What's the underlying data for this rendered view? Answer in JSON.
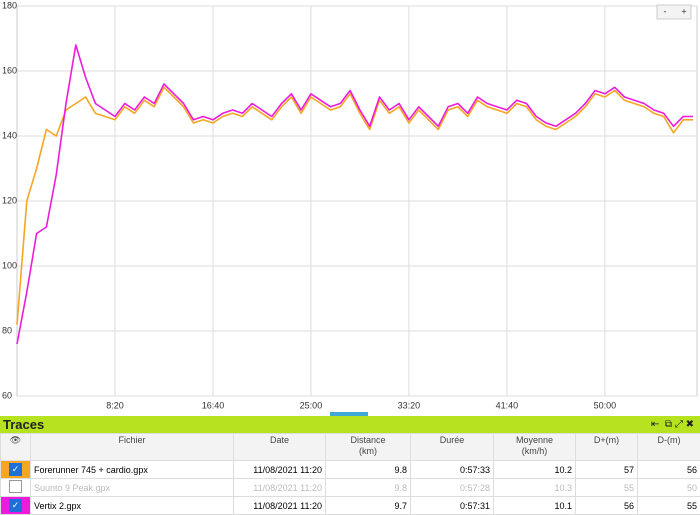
{
  "chart_data": {
    "type": "line",
    "zoom_out": "-",
    "zoom_in": "+",
    "x": [
      0,
      50,
      100,
      150,
      200,
      250,
      300,
      350,
      400,
      450,
      500,
      550,
      600,
      650,
      700,
      750,
      800,
      850,
      900,
      950,
      1000,
      1050,
      1100,
      1150,
      1200,
      1250,
      1300,
      1350,
      1400,
      1450,
      1500,
      1550,
      1600,
      1650,
      1700,
      1750,
      1800,
      1850,
      1900,
      1950,
      2000,
      2050,
      2100,
      2150,
      2200,
      2250,
      2300,
      2350,
      2400,
      2450,
      2500,
      2550,
      2600,
      2650,
      2700,
      2750,
      2800,
      2850,
      2900,
      2950,
      3000,
      3050,
      3100,
      3150,
      3200,
      3250,
      3300,
      3350,
      3400,
      3450
    ],
    "series": [
      {
        "name": "Forerunner 745 + cardio.gpx",
        "color": "#f5a623",
        "values": [
          82,
          120,
          130,
          142,
          140,
          148,
          150,
          152,
          147,
          146,
          145,
          149,
          147,
          151,
          149,
          155,
          152,
          149,
          144,
          145,
          144,
          146,
          147,
          146,
          149,
          147,
          145,
          149,
          152,
          147,
          152,
          150,
          148,
          149,
          153,
          147,
          142,
          151,
          147,
          149,
          144,
          148,
          145,
          142,
          148,
          149,
          146,
          151,
          149,
          148,
          147,
          150,
          149,
          145,
          143,
          142,
          144,
          146,
          149,
          153,
          152,
          154,
          151,
          150,
          149,
          147,
          146,
          141,
          145,
          145
        ]
      },
      {
        "name": "Vertix 2.gpx",
        "color": "#ee1bdc",
        "values": [
          76,
          92,
          110,
          112,
          128,
          150,
          168,
          158,
          150,
          148,
          146,
          150,
          148,
          152,
          150,
          156,
          153,
          150,
          145,
          146,
          145,
          147,
          148,
          147,
          150,
          148,
          146,
          150,
          153,
          148,
          153,
          151,
          149,
          150,
          154,
          148,
          143,
          152,
          148,
          150,
          145,
          149,
          146,
          143,
          149,
          150,
          147,
          152,
          150,
          149,
          148,
          151,
          150,
          146,
          144,
          143,
          145,
          147,
          150,
          154,
          153,
          155,
          152,
          151,
          150,
          148,
          147,
          143,
          146,
          146
        ]
      }
    ],
    "xlim": [
      0,
      3470
    ],
    "ylim": [
      60,
      180
    ],
    "xticks": [
      {
        "value": 500,
        "label": "8:20"
      },
      {
        "value": 1000,
        "label": "16:40"
      },
      {
        "value": 1500,
        "label": "25:00"
      },
      {
        "value": 2000,
        "label": "33:20"
      },
      {
        "value": 2500,
        "label": "41:40"
      },
      {
        "value": 3000,
        "label": "50:00"
      }
    ],
    "yticks": [
      60,
      80,
      100,
      120,
      140,
      160,
      180
    ],
    "grid": true
  },
  "panel": {
    "title": "Traces",
    "columns": [
      "Fichier",
      "Date",
      "Distance\n(km)",
      "Durée",
      "Moyenne\n(km/h)",
      "D+(m)",
      "D-(m)"
    ],
    "rows": [
      {
        "checked": true,
        "color": "#f5a623",
        "cells": [
          "Forerunner 745 + cardio.gpx",
          "11/08/2021 11:20",
          9.8,
          "0:57:33",
          10.2,
          57,
          56
        ]
      },
      {
        "checked": false,
        "color": "#ffffff",
        "cells": [
          "Suunto 9 Peak.gpx",
          "11/08/2021 11:20",
          9.8,
          "0:57:28",
          10.3,
          55,
          50
        ]
      },
      {
        "checked": true,
        "color": "#ee1bdc",
        "cells": [
          "Vertix 2.gpx",
          "11/08/2021 11:20",
          9.7,
          "0:57:31",
          10.1,
          56,
          55
        ]
      }
    ]
  }
}
